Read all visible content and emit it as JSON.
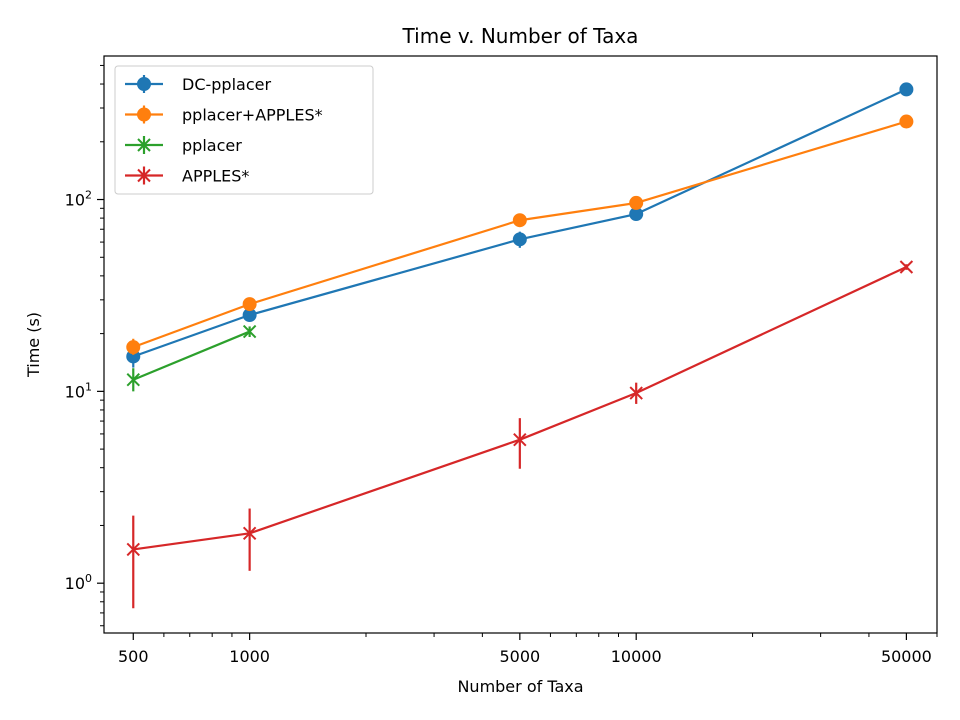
{
  "chart_data": {
    "type": "line",
    "title": "Time v. Number of Taxa",
    "xlabel": "Number of Taxa",
    "ylabel": "Time (s)",
    "xscale": "log",
    "yscale": "log",
    "xlim": [
      420,
      60000
    ],
    "ylim": [
      0.55,
      560
    ],
    "xticks": [
      500,
      1000,
      5000,
      10000,
      50000
    ],
    "xtick_labels": [
      "500",
      "1000",
      "5000",
      "10000",
      "50000"
    ],
    "yticks": [
      1,
      10,
      100
    ],
    "ytick_labels": [
      "10^0",
      "10^1",
      "10^2"
    ],
    "grid": false,
    "legend_position": "top-left",
    "series": [
      {
        "name": "DC-pplacer",
        "color": "#1f77b4",
        "marker": "circle",
        "x": [
          500,
          1000,
          5000,
          10000,
          50000
        ],
        "y": [
          15.2,
          25.0,
          62.0,
          84.0,
          375.0
        ],
        "err_low": [
          13.3,
          23.5,
          56.0,
          81.0,
          365.0
        ],
        "err_high": [
          17.0,
          26.5,
          68.0,
          87.0,
          385.0
        ]
      },
      {
        "name": "pplacer+APPLES*",
        "color": "#ff7f0e",
        "marker": "circle",
        "x": [
          500,
          1000,
          5000,
          10000,
          50000
        ],
        "y": [
          17.0,
          28.5,
          78.0,
          96.0,
          255.0
        ],
        "err_low": [
          15.5,
          27.0,
          75.0,
          93.0,
          248.0
        ],
        "err_high": [
          18.8,
          30.0,
          81.0,
          99.0,
          262.0
        ]
      },
      {
        "name": "pplacer",
        "color": "#2ca02c",
        "marker": "x",
        "x": [
          500,
          1000
        ],
        "y": [
          11.5,
          20.5
        ],
        "err_low": [
          10.0,
          19.2
        ],
        "err_high": [
          13.2,
          21.8
        ]
      },
      {
        "name": "APPLES*",
        "color": "#d62728",
        "marker": "x",
        "x": [
          500,
          1000,
          5000,
          10000,
          50000
        ],
        "y": [
          1.5,
          1.82,
          5.6,
          9.8,
          44.5
        ],
        "err_low": [
          0.74,
          1.16,
          3.95,
          8.6,
          43.0
        ],
        "err_high": [
          2.25,
          2.45,
          7.25,
          11.1,
          46.0
        ]
      }
    ]
  }
}
